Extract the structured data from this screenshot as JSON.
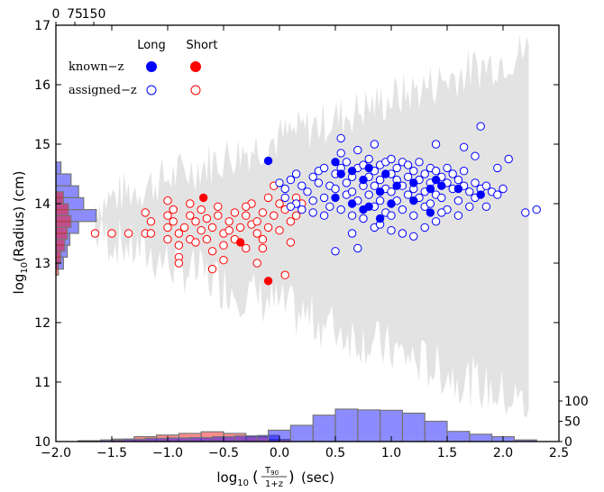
{
  "chart_data": {
    "type": "scatter",
    "title": "",
    "xlabel": {
      "main": "log",
      "sub": "10",
      "frac_num": "T",
      "frac_num_sub": "90",
      "frac_den": "1+z",
      "unit": "(sec)"
    },
    "ylabel": {
      "main": "log",
      "sub": "10",
      "rest": "(Radius) (cm)"
    },
    "xlim": [
      -2.0,
      2.5
    ],
    "ylim": [
      10,
      17
    ],
    "xticks": [
      "−2.0",
      "−1.5",
      "−1.0",
      "−0.5",
      "0.0",
      "0.5",
      "1.0",
      "1.5",
      "2.0",
      "2.5"
    ],
    "yticks": [
      "10",
      "11",
      "12",
      "13",
      "14",
      "15",
      "16",
      "17"
    ],
    "top_hist_axis_ticks": [
      "0",
      "75",
      "150"
    ],
    "right_hist_axis_ticks": [
      "0",
      "50",
      "100"
    ],
    "legend": {
      "placement": "top-left",
      "columns": [
        "Long",
        "Short"
      ],
      "rows": [
        "known−z",
        "assigned−z"
      ]
    },
    "colors": {
      "long": "#0000ff",
      "short": "#ff0000",
      "envelope": "#e3e3e3",
      "hist_edge": "#777777"
    },
    "series": [
      {
        "name": "Long known−z",
        "points": [
          [
            -0.1,
            14.72
          ],
          [
            0.5,
            14.7
          ],
          [
            0.55,
            14.5
          ],
          [
            0.65,
            14.55
          ],
          [
            0.8,
            14.6
          ],
          [
            0.95,
            14.5
          ],
          [
            1.2,
            14.35
          ],
          [
            1.35,
            14.25
          ],
          [
            1.4,
            14.4
          ],
          [
            1.6,
            14.25
          ],
          [
            0.5,
            14.1
          ],
          [
            0.65,
            14.0
          ],
          [
            0.75,
            13.9
          ],
          [
            0.8,
            13.95
          ],
          [
            0.9,
            14.2
          ],
          [
            1.05,
            14.3
          ],
          [
            1.2,
            14.05
          ],
          [
            1.35,
            13.85
          ],
          [
            1.45,
            14.3
          ],
          [
            0.9,
            13.75
          ],
          [
            1.0,
            14.0
          ],
          [
            1.8,
            14.15
          ],
          [
            0.75,
            14.4
          ]
        ]
      },
      {
        "name": "Short known−z",
        "points": [
          [
            -0.68,
            14.1
          ],
          [
            -0.35,
            13.35
          ],
          [
            -0.1,
            12.7
          ]
        ]
      },
      {
        "name": "Long assigned−z",
        "points": [
          [
            0.0,
            14.35
          ],
          [
            0.05,
            14.25
          ],
          [
            0.05,
            14.1
          ],
          [
            0.1,
            14.4
          ],
          [
            0.15,
            14.5
          ],
          [
            0.15,
            14.0
          ],
          [
            0.2,
            14.3
          ],
          [
            0.2,
            13.9
          ],
          [
            0.25,
            14.2
          ],
          [
            0.3,
            14.45
          ],
          [
            0.3,
            14.05
          ],
          [
            0.35,
            14.35
          ],
          [
            0.35,
            14.55
          ],
          [
            0.4,
            14.1
          ],
          [
            0.4,
            14.6
          ],
          [
            0.45,
            14.3
          ],
          [
            0.45,
            13.95
          ],
          [
            0.5,
            14.5
          ],
          [
            0.5,
            14.25
          ],
          [
            0.55,
            14.6
          ],
          [
            0.55,
            13.9
          ],
          [
            0.55,
            14.85
          ],
          [
            0.6,
            14.35
          ],
          [
            0.6,
            14.15
          ],
          [
            0.6,
            14.7
          ],
          [
            0.65,
            14.45
          ],
          [
            0.65,
            13.8
          ],
          [
            0.65,
            14.2
          ],
          [
            0.7,
            14.6
          ],
          [
            0.7,
            14.05
          ],
          [
            0.7,
            14.9
          ],
          [
            0.75,
            14.3
          ],
          [
            0.75,
            14.65
          ],
          [
            0.75,
            13.75
          ],
          [
            0.8,
            14.45
          ],
          [
            0.8,
            14.15
          ],
          [
            0.8,
            14.75
          ],
          [
            0.85,
            14.3
          ],
          [
            0.85,
            13.95
          ],
          [
            0.85,
            14.55
          ],
          [
            0.9,
            14.4
          ],
          [
            0.9,
            14.65
          ],
          [
            0.9,
            14.05
          ],
          [
            0.95,
            14.25
          ],
          [
            0.95,
            14.7
          ],
          [
            0.95,
            13.85
          ],
          [
            1.0,
            14.5
          ],
          [
            1.0,
            14.2
          ],
          [
            1.0,
            14.75
          ],
          [
            1.05,
            14.4
          ],
          [
            1.05,
            14.05
          ],
          [
            1.05,
            14.6
          ],
          [
            1.1,
            14.3
          ],
          [
            1.1,
            14.7
          ],
          [
            1.1,
            13.9
          ],
          [
            1.15,
            14.45
          ],
          [
            1.15,
            14.15
          ],
          [
            1.15,
            14.65
          ],
          [
            1.2,
            14.55
          ],
          [
            1.2,
            14.25
          ],
          [
            1.2,
            13.8
          ],
          [
            1.25,
            14.4
          ],
          [
            1.25,
            14.7
          ],
          [
            1.25,
            14.1
          ],
          [
            1.3,
            14.5
          ],
          [
            1.3,
            14.2
          ],
          [
            1.3,
            13.95
          ],
          [
            1.35,
            14.6
          ],
          [
            1.35,
            14.35
          ],
          [
            1.35,
            14.0
          ],
          [
            1.4,
            14.55
          ],
          [
            1.4,
            14.15
          ],
          [
            1.4,
            13.7
          ],
          [
            1.45,
            14.45
          ],
          [
            1.45,
            14.1
          ],
          [
            1.5,
            14.35
          ],
          [
            1.5,
            14.6
          ],
          [
            1.5,
            13.9
          ],
          [
            1.55,
            14.25
          ],
          [
            1.55,
            14.5
          ],
          [
            1.6,
            14.4
          ],
          [
            1.6,
            14.05
          ],
          [
            1.65,
            14.3
          ],
          [
            1.65,
            14.55
          ],
          [
            1.7,
            14.2
          ],
          [
            1.7,
            13.95
          ],
          [
            1.75,
            14.35
          ],
          [
            1.75,
            14.1
          ],
          [
            1.8,
            14.25
          ],
          [
            1.85,
            14.3
          ],
          [
            1.85,
            13.95
          ],
          [
            1.9,
            14.2
          ],
          [
            1.95,
            14.15
          ],
          [
            2.0,
            14.25
          ],
          [
            0.55,
            15.1
          ],
          [
            0.85,
            15.0
          ],
          [
            1.4,
            15.0
          ],
          [
            1.65,
            14.95
          ],
          [
            1.8,
            15.3
          ],
          [
            1.75,
            14.8
          ],
          [
            2.05,
            14.75
          ],
          [
            1.95,
            14.6
          ],
          [
            0.5,
            13.2
          ],
          [
            0.65,
            13.5
          ],
          [
            0.7,
            13.25
          ],
          [
            0.85,
            13.6
          ],
          [
            1.0,
            13.55
          ],
          [
            1.1,
            13.5
          ],
          [
            1.2,
            13.45
          ],
          [
            1.3,
            13.6
          ],
          [
            0.9,
            13.65
          ],
          [
            1.0,
            13.8
          ],
          [
            2.2,
            13.85
          ],
          [
            2.3,
            13.9
          ],
          [
            0.3,
            13.85
          ],
          [
            0.4,
            13.8
          ],
          [
            0.1,
            13.95
          ],
          [
            1.6,
            13.8
          ],
          [
            1.45,
            13.85
          ]
        ]
      },
      {
        "name": "Short assigned−z",
        "points": [
          [
            -1.65,
            13.5
          ],
          [
            -1.5,
            13.5
          ],
          [
            -1.2,
            13.5
          ],
          [
            -1.2,
            13.85
          ],
          [
            -1.15,
            13.5
          ],
          [
            -1.15,
            13.7
          ],
          [
            -1.0,
            13.8
          ],
          [
            -1.0,
            13.6
          ],
          [
            -1.0,
            13.4
          ],
          [
            -0.95,
            13.9
          ],
          [
            -0.95,
            13.7
          ],
          [
            -0.9,
            13.5
          ],
          [
            -0.9,
            13.3
          ],
          [
            -0.9,
            13.1
          ],
          [
            -0.9,
            13.0
          ],
          [
            -0.85,
            13.6
          ],
          [
            -0.8,
            13.8
          ],
          [
            -0.8,
            13.4
          ],
          [
            -0.75,
            13.7
          ],
          [
            -0.7,
            13.9
          ],
          [
            -0.7,
            13.55
          ],
          [
            -0.65,
            13.75
          ],
          [
            -0.65,
            13.4
          ],
          [
            -0.6,
            13.6
          ],
          [
            -0.6,
            13.2
          ],
          [
            -0.55,
            13.8
          ],
          [
            -0.5,
            13.5
          ],
          [
            -0.5,
            13.3
          ],
          [
            -0.45,
            13.7
          ],
          [
            -0.45,
            13.55
          ],
          [
            -0.4,
            13.85
          ],
          [
            -0.4,
            13.4
          ],
          [
            -0.35,
            13.6
          ],
          [
            -0.3,
            13.8
          ],
          [
            -0.3,
            13.25
          ],
          [
            -0.25,
            13.65
          ],
          [
            -0.25,
            14.0
          ],
          [
            -0.2,
            13.5
          ],
          [
            -0.2,
            13.7
          ],
          [
            -0.15,
            13.85
          ],
          [
            -0.15,
            13.4
          ],
          [
            -0.1,
            14.1
          ],
          [
            -0.1,
            13.6
          ],
          [
            -0.05,
            14.3
          ],
          [
            -0.05,
            13.8
          ],
          [
            0.0,
            14.0
          ],
          [
            0.0,
            13.55
          ],
          [
            0.05,
            13.9
          ],
          [
            0.1,
            13.7
          ],
          [
            0.15,
            14.1
          ],
          [
            0.15,
            13.8
          ],
          [
            0.2,
            14.0
          ],
          [
            -0.6,
            12.9
          ],
          [
            -0.2,
            13.0
          ],
          [
            0.05,
            12.8
          ],
          [
            0.1,
            13.35
          ],
          [
            -0.5,
            13.05
          ],
          [
            -1.35,
            13.5
          ],
          [
            -1.0,
            14.05
          ],
          [
            -0.8,
            14.0
          ],
          [
            -0.55,
            13.95
          ],
          [
            -0.3,
            13.95
          ],
          [
            -0.75,
            13.35
          ],
          [
            -0.15,
            13.25
          ]
        ]
      }
    ],
    "hist_long_bottom": [
      [
        -1.7,
        2
      ],
      [
        -1.5,
        4
      ],
      [
        -1.3,
        6
      ],
      [
        -1.1,
        8
      ],
      [
        -0.9,
        9
      ],
      [
        -0.7,
        10
      ],
      [
        -0.5,
        12
      ],
      [
        -0.3,
        14
      ],
      [
        -0.1,
        15
      ],
      [
        0.0,
        28
      ],
      [
        0.2,
        40
      ],
      [
        0.4,
        65
      ],
      [
        0.6,
        80
      ],
      [
        0.8,
        78
      ],
      [
        1.0,
        77
      ],
      [
        1.2,
        70
      ],
      [
        1.4,
        50
      ],
      [
        1.6,
        25
      ],
      [
        1.8,
        18
      ],
      [
        2.0,
        12
      ],
      [
        2.2,
        4
      ]
    ],
    "hist_short_bottom": [
      [
        -1.4,
        6
      ],
      [
        -1.2,
        12
      ],
      [
        -1.0,
        16
      ],
      [
        -0.8,
        20
      ],
      [
        -0.6,
        24
      ],
      [
        -0.4,
        20
      ],
      [
        -0.2,
        12
      ],
      [
        0.0,
        5
      ]
    ],
    "hist_long_left": [
      [
        13.0,
        30
      ],
      [
        13.2,
        45
      ],
      [
        13.4,
        55
      ],
      [
        13.6,
        90
      ],
      [
        13.8,
        160
      ],
      [
        14.0,
        110
      ],
      [
        14.2,
        90
      ],
      [
        14.4,
        60
      ],
      [
        14.6,
        20
      ]
    ],
    "hist_short_left": [
      [
        12.9,
        10
      ],
      [
        13.1,
        20
      ],
      [
        13.3,
        35
      ],
      [
        13.5,
        45
      ],
      [
        13.7,
        60
      ],
      [
        13.9,
        50
      ],
      [
        14.1,
        30
      ]
    ]
  }
}
